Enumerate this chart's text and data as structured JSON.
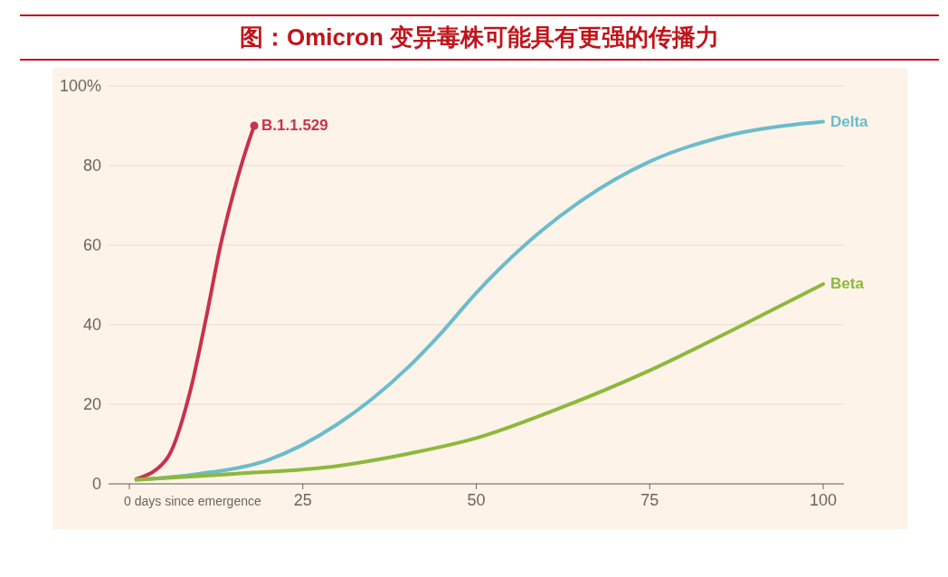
{
  "chart_data": {
    "type": "line",
    "title": "图：Omicron 变异毒株可能具有更强的传播力",
    "xlim": [
      -3,
      103
    ],
    "xticks": [
      {
        "value": 0,
        "label": "0 days since emergence"
      },
      25,
      50,
      75,
      {
        "value": 100,
        "label": "100"
      }
    ],
    "ylim": [
      0,
      100
    ],
    "yticks": [
      0,
      20,
      40,
      60,
      80,
      {
        "value": 100,
        "label": "100%"
      }
    ],
    "grid": "y",
    "legend": false,
    "line_style": "solid",
    "series": [
      {
        "name": "B.1.1.529",
        "color": "#c8324a",
        "x": [
          1,
          5.4,
          8.7,
          11.1,
          13.1,
          15.1,
          17.2,
          18
        ],
        "values": [
          1.2,
          6.3,
          22.8,
          42,
          59.6,
          73.7,
          86,
          90
        ]
      },
      {
        "type": "scatter",
        "color": "#c8324a",
        "marker": "circle",
        "x": [
          18
        ],
        "values": [
          90
        ]
      },
      {
        "name": "Delta",
        "color": "#6bbccc",
        "x": [
          1,
          10,
          20,
          30,
          40,
          45,
          50,
          57,
          65,
          75,
          85,
          100
        ],
        "values": [
          1,
          2.5,
          6,
          15,
          29,
          38,
          48,
          60,
          71,
          81,
          87,
          91
        ]
      },
      {
        "name": "Beta",
        "color": "#8db83c",
        "x": [
          1,
          15,
          30,
          40,
          50,
          62,
          75,
          87,
          100
        ],
        "values": [
          1,
          2.5,
          4.5,
          7.5,
          11.5,
          19,
          28.5,
          38.7,
          50.2
        ]
      }
    ]
  }
}
